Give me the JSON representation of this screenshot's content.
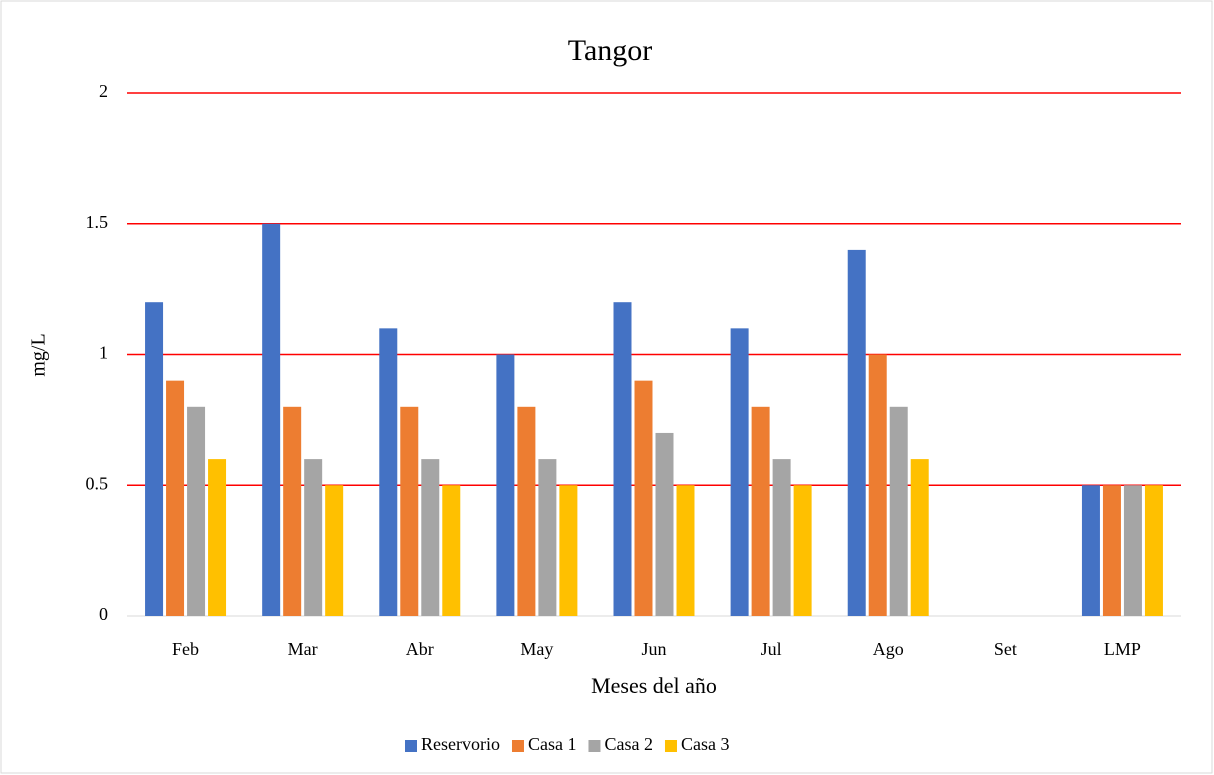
{
  "chart_data": {
    "type": "bar",
    "title": "Tangor",
    "x_label": "Meses del año",
    "y_label": "mg/L",
    "categories": [
      "Feb",
      "Mar",
      "Abr",
      "May",
      "Jun",
      "Jul",
      "Ago",
      "Set",
      "LMP"
    ],
    "series": [
      {
        "name": "Reservorio",
        "color": "#4472c4",
        "values": [
          1.2,
          1.5,
          1.1,
          1.0,
          1.2,
          1.1,
          1.4,
          null,
          0.5
        ]
      },
      {
        "name": "Casa 1",
        "color": "#ed7d31",
        "values": [
          0.9,
          0.8,
          0.8,
          0.8,
          0.9,
          0.8,
          1.0,
          null,
          0.5
        ]
      },
      {
        "name": "Casa 2",
        "color": "#a5a5a5",
        "values": [
          0.8,
          0.6,
          0.6,
          0.6,
          0.7,
          0.6,
          0.8,
          null,
          0.5
        ]
      },
      {
        "name": "Casa 3",
        "color": "#ffc000",
        "values": [
          0.6,
          0.5,
          0.5,
          0.5,
          0.5,
          0.5,
          0.6,
          null,
          0.5
        ]
      }
    ],
    "ylim": [
      0,
      2
    ],
    "yticks": [
      0,
      0.5,
      1,
      1.5,
      2
    ],
    "grid": true,
    "grid_color": "#ff0000",
    "legend": "bottom"
  }
}
